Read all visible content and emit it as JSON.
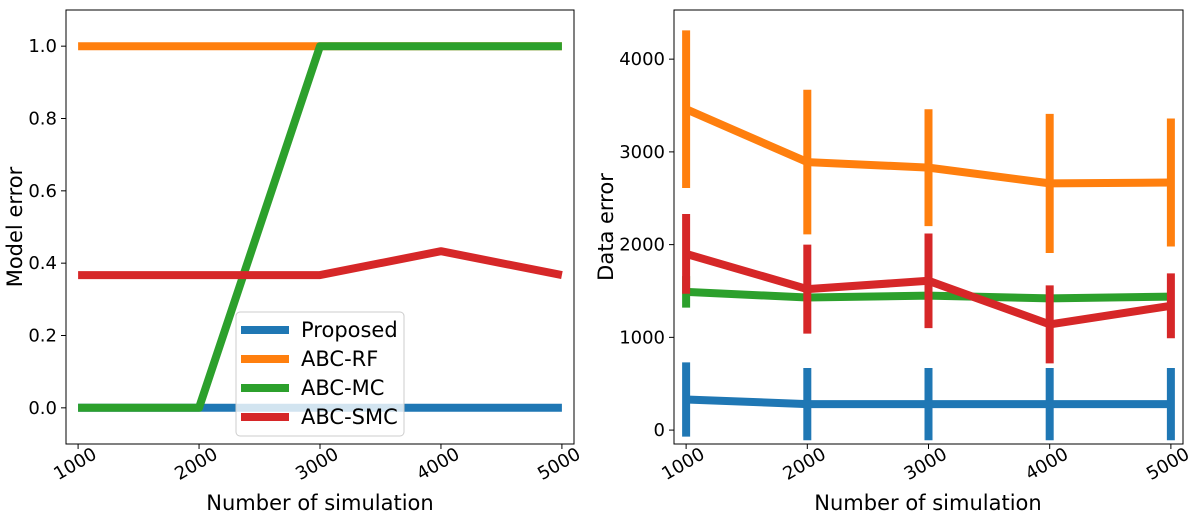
{
  "chart_data": [
    {
      "type": "line",
      "xlabel": "Number of simulation",
      "ylabel": "Model error",
      "x": [
        1000,
        2000,
        3000,
        4000,
        5000
      ],
      "x_ticks": [
        "1000",
        "2000",
        "3000",
        "4000",
        "5000"
      ],
      "xlim": [
        900,
        5100
      ],
      "ylim": [
        -0.1,
        1.1
      ],
      "y_ticks": [
        "0.0",
        "0.2",
        "0.4",
        "0.6",
        "0.8",
        "1.0"
      ],
      "grid": false,
      "legend_placement": "lower-center",
      "series": [
        {
          "name": "Proposed",
          "color": "#1f77b4",
          "values": [
            0,
            0,
            0,
            0,
            0
          ]
        },
        {
          "name": "ABC-RF",
          "color": "#ff7f0e",
          "values": [
            1,
            1,
            1,
            1,
            1
          ]
        },
        {
          "name": "ABC-MC",
          "color": "#2ca02c",
          "values": [
            0,
            0,
            1,
            1,
            1
          ]
        },
        {
          "name": "ABC-SMC",
          "color": "#d62728",
          "values": [
            0.367,
            0.367,
            0.367,
            0.433,
            0.367
          ]
        }
      ]
    },
    {
      "type": "line",
      "xlabel": "Number of simulation",
      "ylabel": "Data error",
      "x": [
        1000,
        2000,
        3000,
        4000,
        5000
      ],
      "x_ticks": [
        "1000",
        "2000",
        "3000",
        "4000",
        "5000"
      ],
      "xlim": [
        900,
        5100
      ],
      "ylim": [
        -150,
        4530
      ],
      "y_ticks": [
        "0",
        "1000",
        "2000",
        "3000",
        "4000"
      ],
      "grid": false,
      "error_bars": true,
      "series": [
        {
          "name": "Proposed",
          "color": "#1f77b4",
          "values": [
            330,
            280,
            280,
            280,
            280
          ],
          "errors": [
            400,
            390,
            390,
            390,
            390
          ]
        },
        {
          "name": "ABC-RF",
          "color": "#ff7f0e",
          "values": [
            3460,
            2890,
            2830,
            2660,
            2670
          ],
          "errors": [
            850,
            780,
            630,
            750,
            690
          ]
        },
        {
          "name": "ABC-MC",
          "color": "#2ca02c",
          "values": [
            1490,
            1430,
            1450,
            1420,
            1440
          ],
          "errors": [
            170,
            0,
            0,
            0,
            0
          ]
        },
        {
          "name": "ABC-SMC",
          "color": "#d62728",
          "values": [
            1900,
            1520,
            1610,
            1140,
            1340
          ],
          "errors": [
            430,
            480,
            510,
            420,
            350
          ]
        }
      ]
    }
  ]
}
